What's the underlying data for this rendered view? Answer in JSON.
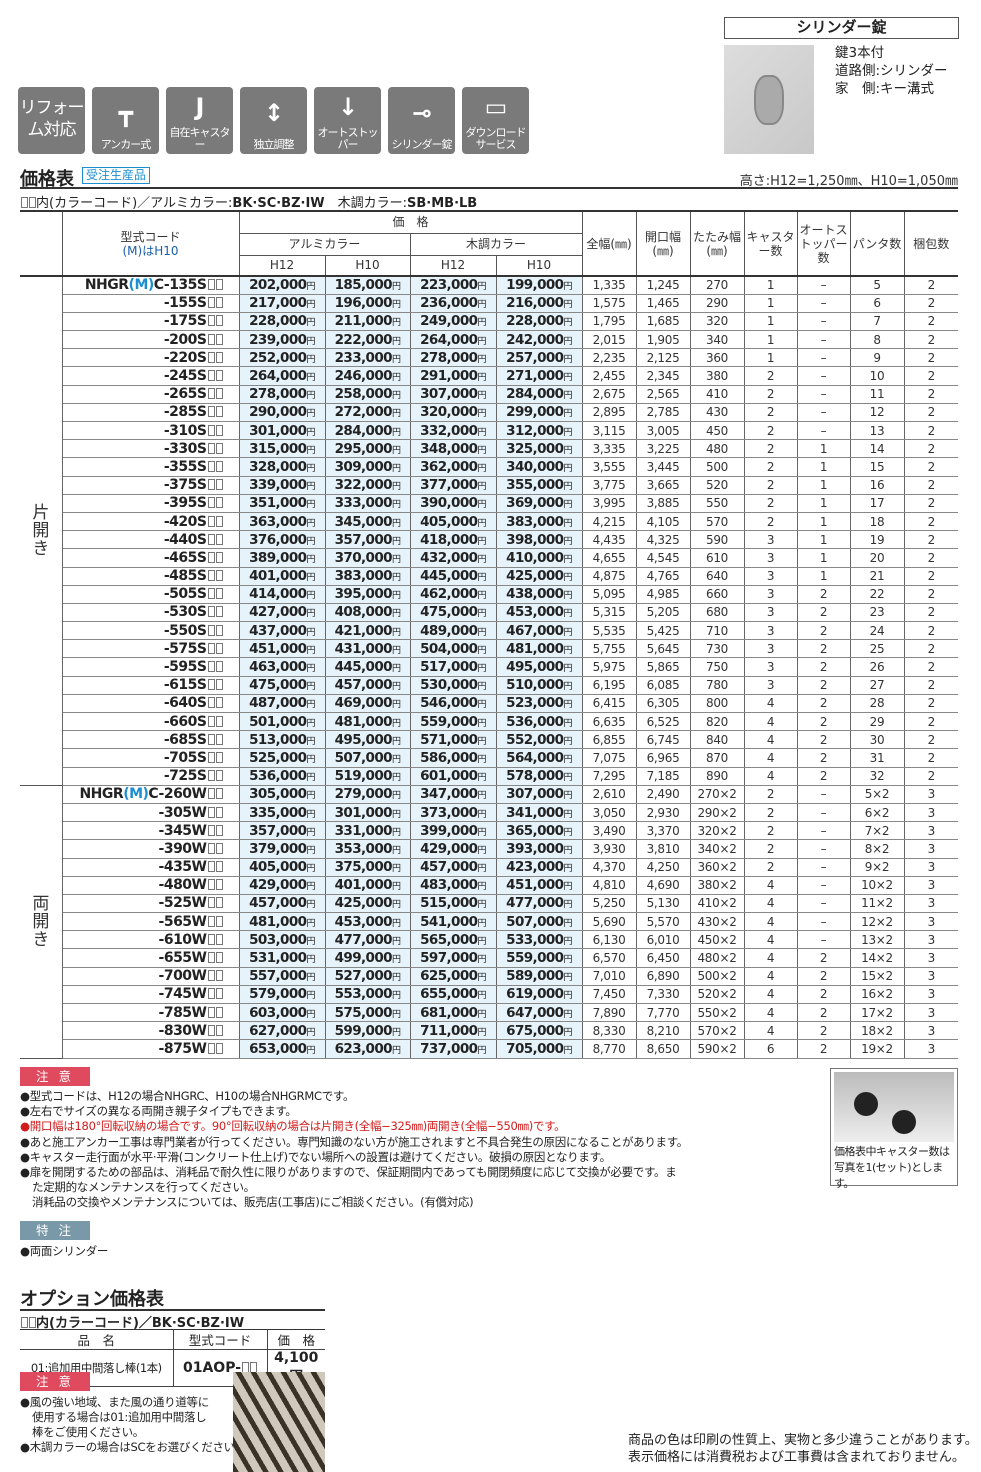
{
  "icons": [
    {
      "label": "リフォーム対応",
      "name": "reform-icon"
    },
    {
      "label": "アンカー式",
      "name": "anchor-icon",
      "glyph": "┳"
    },
    {
      "label": "自在キャスター",
      "name": "caster-icon",
      "glyph": "J"
    },
    {
      "label": "独立調整",
      "name": "adjust-icon",
      "glyph": "↕"
    },
    {
      "label": "オートストッパー",
      "name": "auto-stopper-icon",
      "glyph": "↓"
    },
    {
      "label": "シリンダー錠",
      "name": "cylinder-lock-icon",
      "glyph": "⊸"
    },
    {
      "label": "ダウンロードサービス",
      "name": "download-icon",
      "glyph": "▭"
    }
  ],
  "cylinder": {
    "title": "シリンダー錠",
    "lines": [
      "鍵3本付",
      "道路側:シリンダー",
      "家　側:キー溝式"
    ]
  },
  "price_title": "価格表",
  "badge": "受注生産品",
  "height_note": "高さ:H12=1,250㎜、H10=1,050㎜",
  "color_note": {
    "prefix": "内(カラーコード)／アルミカラー:",
    "alu": "BK·SC·BZ·IW",
    "wood_label": "　木調カラー:",
    "wood": "SB·MB·LB"
  },
  "headers": {
    "code": "型式コード",
    "code_m": "(M)はH10",
    "price": "価　格",
    "alu": "アルミカラー",
    "wood": "木調カラー",
    "h12": "H12",
    "h10": "H10",
    "width": "全幅(㎜)",
    "open": "開口幅(㎜)",
    "fold": "たたみ幅(㎜)",
    "caster": "キャスター数",
    "stopper": "オートストッパー数",
    "panta": "パンタ数",
    "pack": "梱包数"
  },
  "yen": "円",
  "groups": [
    {
      "label": "片開き",
      "prefix": "NHGR",
      "m": "(M)",
      "suffix": "C",
      "rows": [
        [
          "-135S",
          "202,000",
          "185,000",
          "223,000",
          "199,000",
          "1,335",
          "1,245",
          "270",
          "1",
          "–",
          "5",
          "2"
        ],
        [
          "-155S",
          "217,000",
          "196,000",
          "236,000",
          "216,000",
          "1,575",
          "1,465",
          "290",
          "1",
          "–",
          "6",
          "2"
        ],
        [
          "-175S",
          "228,000",
          "211,000",
          "249,000",
          "228,000",
          "1,795",
          "1,685",
          "320",
          "1",
          "–",
          "7",
          "2"
        ],
        [
          "-200S",
          "239,000",
          "222,000",
          "264,000",
          "242,000",
          "2,015",
          "1,905",
          "340",
          "1",
          "–",
          "8",
          "2"
        ],
        [
          "-220S",
          "252,000",
          "233,000",
          "278,000",
          "257,000",
          "2,235",
          "2,125",
          "360",
          "1",
          "–",
          "9",
          "2"
        ],
        [
          "-245S",
          "264,000",
          "246,000",
          "291,000",
          "271,000",
          "2,455",
          "2,345",
          "380",
          "2",
          "–",
          "10",
          "2"
        ],
        [
          "-265S",
          "278,000",
          "258,000",
          "307,000",
          "284,000",
          "2,675",
          "2,565",
          "410",
          "2",
          "–",
          "11",
          "2"
        ],
        [
          "-285S",
          "290,000",
          "272,000",
          "320,000",
          "299,000",
          "2,895",
          "2,785",
          "430",
          "2",
          "–",
          "12",
          "2"
        ],
        [
          "-310S",
          "301,000",
          "284,000",
          "332,000",
          "312,000",
          "3,115",
          "3,005",
          "450",
          "2",
          "–",
          "13",
          "2"
        ],
        [
          "-330S",
          "315,000",
          "295,000",
          "348,000",
          "325,000",
          "3,335",
          "3,225",
          "480",
          "2",
          "1",
          "14",
          "2"
        ],
        [
          "-355S",
          "328,000",
          "309,000",
          "362,000",
          "340,000",
          "3,555",
          "3,445",
          "500",
          "2",
          "1",
          "15",
          "2"
        ],
        [
          "-375S",
          "339,000",
          "322,000",
          "377,000",
          "355,000",
          "3,775",
          "3,665",
          "520",
          "2",
          "1",
          "16",
          "2"
        ],
        [
          "-395S",
          "351,000",
          "333,000",
          "390,000",
          "369,000",
          "3,995",
          "3,885",
          "550",
          "2",
          "1",
          "17",
          "2"
        ],
        [
          "-420S",
          "363,000",
          "345,000",
          "405,000",
          "383,000",
          "4,215",
          "4,105",
          "570",
          "2",
          "1",
          "18",
          "2"
        ],
        [
          "-440S",
          "376,000",
          "357,000",
          "418,000",
          "398,000",
          "4,435",
          "4,325",
          "590",
          "3",
          "1",
          "19",
          "2"
        ],
        [
          "-465S",
          "389,000",
          "370,000",
          "432,000",
          "410,000",
          "4,655",
          "4,545",
          "610",
          "3",
          "1",
          "20",
          "2"
        ],
        [
          "-485S",
          "401,000",
          "383,000",
          "445,000",
          "425,000",
          "4,875",
          "4,765",
          "640",
          "3",
          "1",
          "21",
          "2"
        ],
        [
          "-505S",
          "414,000",
          "395,000",
          "462,000",
          "438,000",
          "5,095",
          "4,985",
          "660",
          "3",
          "2",
          "22",
          "2"
        ],
        [
          "-530S",
          "427,000",
          "408,000",
          "475,000",
          "453,000",
          "5,315",
          "5,205",
          "680",
          "3",
          "2",
          "23",
          "2"
        ],
        [
          "-550S",
          "437,000",
          "421,000",
          "489,000",
          "467,000",
          "5,535",
          "5,425",
          "710",
          "3",
          "2",
          "24",
          "2"
        ],
        [
          "-575S",
          "451,000",
          "431,000",
          "504,000",
          "481,000",
          "5,755",
          "5,645",
          "730",
          "3",
          "2",
          "25",
          "2"
        ],
        [
          "-595S",
          "463,000",
          "445,000",
          "517,000",
          "495,000",
          "5,975",
          "5,865",
          "750",
          "3",
          "2",
          "26",
          "2"
        ],
        [
          "-615S",
          "475,000",
          "457,000",
          "530,000",
          "510,000",
          "6,195",
          "6,085",
          "780",
          "3",
          "2",
          "27",
          "2"
        ],
        [
          "-640S",
          "487,000",
          "469,000",
          "546,000",
          "523,000",
          "6,415",
          "6,305",
          "800",
          "4",
          "2",
          "28",
          "2"
        ],
        [
          "-660S",
          "501,000",
          "481,000",
          "559,000",
          "536,000",
          "6,635",
          "6,525",
          "820",
          "4",
          "2",
          "29",
          "2"
        ],
        [
          "-685S",
          "513,000",
          "495,000",
          "571,000",
          "552,000",
          "6,855",
          "6,745",
          "840",
          "4",
          "2",
          "30",
          "2"
        ],
        [
          "-705S",
          "525,000",
          "507,000",
          "586,000",
          "564,000",
          "7,075",
          "6,965",
          "870",
          "4",
          "2",
          "31",
          "2"
        ],
        [
          "-725S",
          "536,000",
          "519,000",
          "601,000",
          "578,000",
          "7,295",
          "7,185",
          "890",
          "4",
          "2",
          "32",
          "2"
        ]
      ]
    },
    {
      "label": "両開き",
      "prefix": "NHGR",
      "m": "(M)",
      "suffix": "C",
      "rows": [
        [
          "-260W",
          "305,000",
          "279,000",
          "347,000",
          "307,000",
          "2,610",
          "2,490",
          "270×2",
          "2",
          "–",
          "5×2",
          "3"
        ],
        [
          "-305W",
          "335,000",
          "301,000",
          "373,000",
          "341,000",
          "3,050",
          "2,930",
          "290×2",
          "2",
          "–",
          "6×2",
          "3"
        ],
        [
          "-345W",
          "357,000",
          "331,000",
          "399,000",
          "365,000",
          "3,490",
          "3,370",
          "320×2",
          "2",
          "–",
          "7×2",
          "3"
        ],
        [
          "-390W",
          "379,000",
          "353,000",
          "429,000",
          "393,000",
          "3,930",
          "3,810",
          "340×2",
          "2",
          "–",
          "8×2",
          "3"
        ],
        [
          "-435W",
          "405,000",
          "375,000",
          "457,000",
          "423,000",
          "4,370",
          "4,250",
          "360×2",
          "2",
          "–",
          "9×2",
          "3"
        ],
        [
          "-480W",
          "429,000",
          "401,000",
          "483,000",
          "451,000",
          "4,810",
          "4,690",
          "380×2",
          "4",
          "–",
          "10×2",
          "3"
        ],
        [
          "-525W",
          "457,000",
          "425,000",
          "515,000",
          "477,000",
          "5,250",
          "5,130",
          "410×2",
          "4",
          "–",
          "11×2",
          "3"
        ],
        [
          "-565W",
          "481,000",
          "453,000",
          "541,000",
          "507,000",
          "5,690",
          "5,570",
          "430×2",
          "4",
          "–",
          "12×2",
          "3"
        ],
        [
          "-610W",
          "503,000",
          "477,000",
          "565,000",
          "533,000",
          "6,130",
          "6,010",
          "450×2",
          "4",
          "–",
          "13×2",
          "3"
        ],
        [
          "-655W",
          "531,000",
          "499,000",
          "597,000",
          "559,000",
          "6,570",
          "6,450",
          "480×2",
          "4",
          "2",
          "14×2",
          "3"
        ],
        [
          "-700W",
          "557,000",
          "527,000",
          "625,000",
          "589,000",
          "7,010",
          "6,890",
          "500×2",
          "4",
          "2",
          "15×2",
          "3"
        ],
        [
          "-745W",
          "579,000",
          "553,000",
          "655,000",
          "619,000",
          "7,450",
          "7,330",
          "520×2",
          "4",
          "2",
          "16×2",
          "3"
        ],
        [
          "-785W",
          "603,000",
          "575,000",
          "681,000",
          "647,000",
          "7,890",
          "7,770",
          "550×2",
          "4",
          "2",
          "17×2",
          "3"
        ],
        [
          "-830W",
          "627,000",
          "599,000",
          "711,000",
          "675,000",
          "8,330",
          "8,210",
          "570×2",
          "4",
          "2",
          "18×2",
          "3"
        ],
        [
          "-875W",
          "653,000",
          "623,000",
          "737,000",
          "705,000",
          "8,770",
          "8,650",
          "590×2",
          "6",
          "2",
          "19×2",
          "3"
        ]
      ]
    }
  ],
  "caution_label": "注 意",
  "notes": [
    {
      "t": "●型式コードは、H12の場合NHGRC、H10の場合NHGRMCです。"
    },
    {
      "t": "●左右でサイズの異なる両開き親子タイプもできます。"
    },
    {
      "t": "●開口幅は180°回転収納の場合です。90°回転収納の場合は片開き(全幅−325㎜)両開き(全幅−550㎜)です。",
      "red": true
    },
    {
      "t": "●あと施工アンカー工事は専門業者が行ってください。専門知識のない方が施工されますと不具合発生の原因になることがあります。"
    },
    {
      "t": "●キャスター走行面が水平·平滑(コンクリート仕上げ)でない場所への設置は避けてください。破損の原因となります。"
    },
    {
      "t": "●扉を開閉するための部品は、消耗品で耐久性に限りがありますので、保証期間内であっても開閉頻度に応じて交換が必要です。ま"
    },
    {
      "t": "た定期的なメンテナンスを行ってください。",
      "ind": true
    },
    {
      "t": "消耗品の交換やメンテナンスについては、販売店(工事店)にご相談ください。(有償対応)",
      "ind": true
    }
  ],
  "caster_caption": [
    "価格表中キャスター数は",
    "写真を1(セット)とします。"
  ],
  "special_label": "特 注",
  "special": "●両面シリンダー",
  "option": {
    "title": "オプション価格表",
    "color_note": "内(カラーコード)／BK·SC·BZ·IW",
    "headers": [
      "品　名",
      "型式コード",
      "価　格"
    ],
    "row": [
      "01:追加用中間落し棒(1本)",
      "01AOP-",
      "4,100円"
    ],
    "caution_label": "注 意",
    "notes": [
      "●風の強い地域、また風の通り道等に",
      "使用する場合は01:追加用中間落し",
      "棒をご使用ください。",
      "●木調カラーの場合はSCをお選びください。"
    ]
  },
  "footer": [
    "商品の色は印刷の性質上、実物と多少違うことがあります。",
    "表示価格には消費税および工事費は含まれておりません。"
  ]
}
